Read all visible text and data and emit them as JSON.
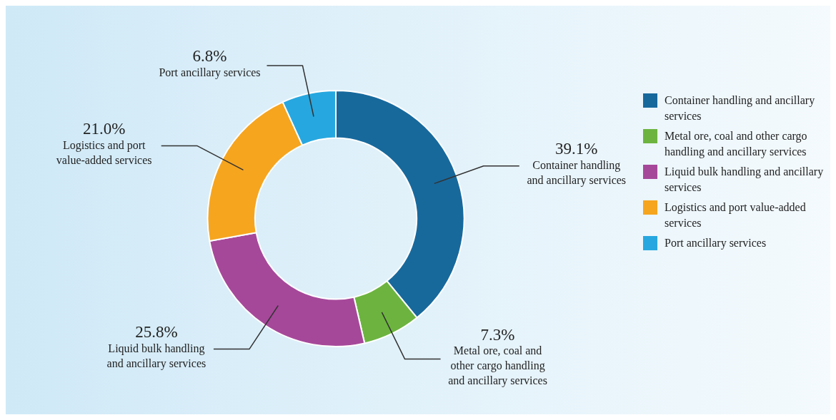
{
  "chart_data": {
    "type": "donut",
    "categories": [
      "Container handling and ancillary services",
      "Metal ore, coal and other cargo handling and ancillary services",
      "Liquid bulk handling and ancillary services",
      "Logistics and port value-added services",
      "Port ancillary services"
    ],
    "values": [
      39.1,
      7.3,
      25.8,
      21.0,
      6.8
    ],
    "colors": [
      "#17699c",
      "#6cb43f",
      "#a6489a",
      "#f6a51f",
      "#27a7df"
    ],
    "value_labels": [
      "39.1%",
      "7.3%",
      "25.8%",
      "21.0%",
      "6.8%"
    ],
    "legend": "right"
  }
}
